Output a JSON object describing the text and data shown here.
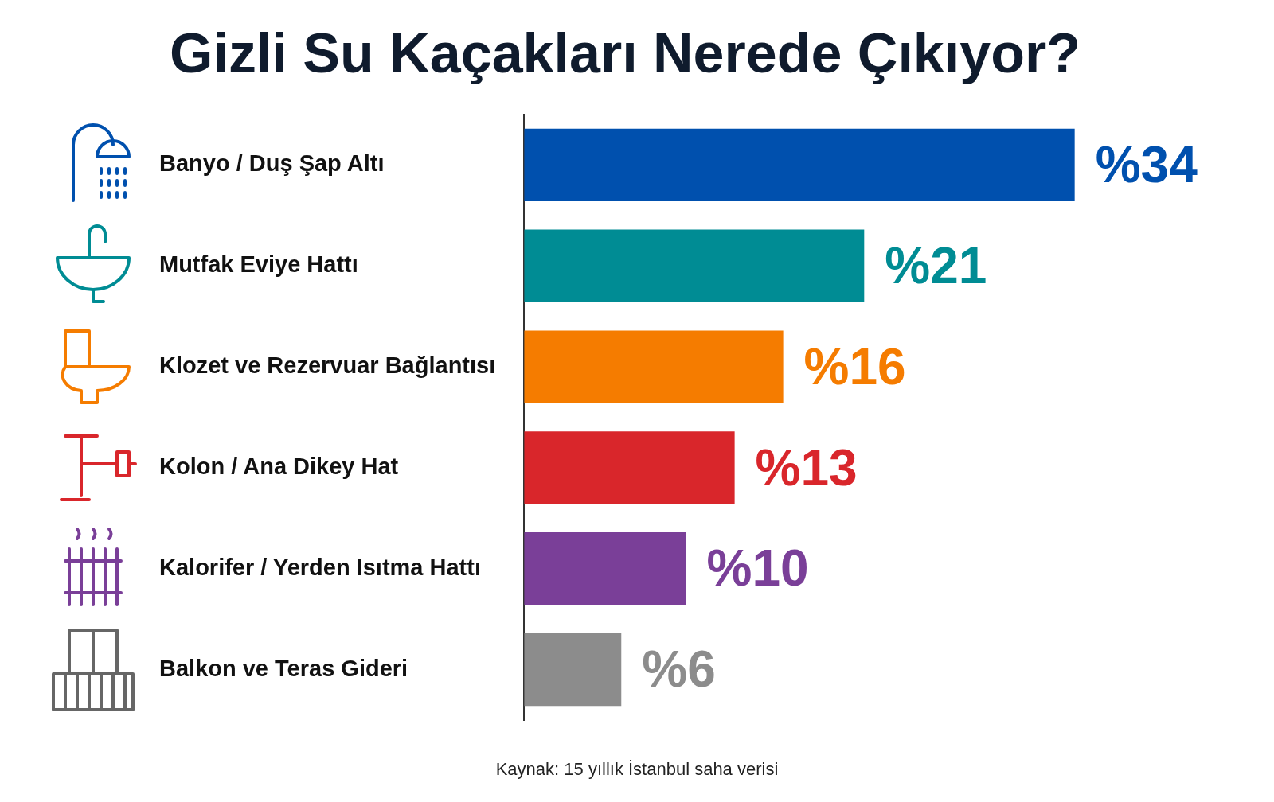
{
  "chart_data": {
    "type": "bar",
    "orientation": "horizontal",
    "title": "Gizli Su Kaçakları Nerede Çıkıyor?",
    "categories": [
      "Banyo / Duş Şap Altı",
      "Mutfak Eviye Hattı",
      "Klozet ve Rezervuar Bağlantısı",
      "Kolon / Ana Dikey Hat",
      "Kalorifer / Yerden Isıtma Hattı",
      "Balkon ve Teras Gideri"
    ],
    "values": [
      34,
      21,
      16,
      13,
      10,
      6
    ],
    "colors": [
      "#0050ae",
      "#008c94",
      "#f57c00",
      "#d9262b",
      "#7a3f98",
      "#8c8c8c"
    ],
    "value_labels": [
      "%34",
      "%21",
      "%16",
      "%13",
      "%10",
      "%6"
    ],
    "tick_labels": "y",
    "grid": false,
    "legend": false,
    "annotations": [
      "Kaynak: 15 yıllık İstanbul saha verisi"
    ]
  }
}
